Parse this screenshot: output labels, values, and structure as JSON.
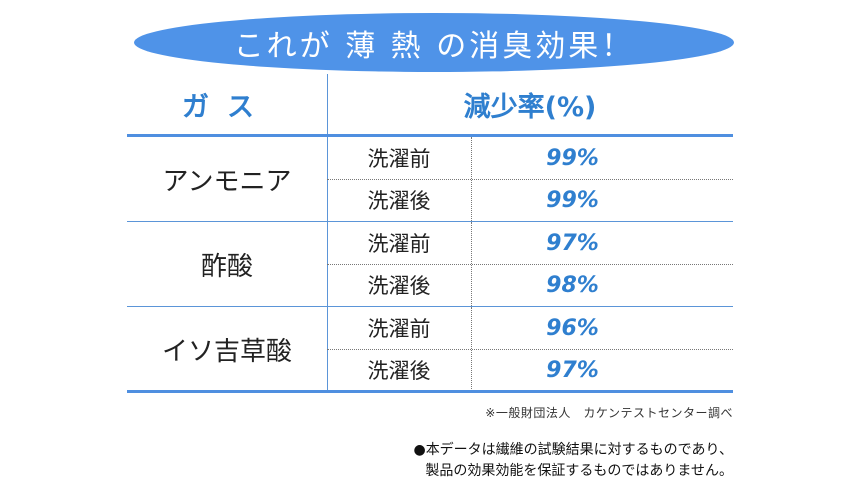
{
  "title": "これが 薄 熱 の消臭効果！",
  "headers": {
    "gas": "ガス",
    "rate": "減少率(%)"
  },
  "rows": [
    {
      "gas": "アンモニア",
      "entries": [
        {
          "condition": "洗濯前",
          "value": "99%"
        },
        {
          "condition": "洗濯後",
          "value": "99%"
        }
      ]
    },
    {
      "gas": "酢酸",
      "entries": [
        {
          "condition": "洗濯前",
          "value": "97%"
        },
        {
          "condition": "洗濯後",
          "value": "98%"
        }
      ]
    },
    {
      "gas": "イソ吉草酸",
      "entries": [
        {
          "condition": "洗濯前",
          "value": "96%"
        },
        {
          "condition": "洗濯後",
          "value": "97%"
        }
      ]
    }
  ],
  "source": "※一般財団法人　カケンテストセンター調べ",
  "note": {
    "bullet": "●",
    "line1": "本データは繊維の試験結果に対するものであり、",
    "line2": "製品の効果効能を保証するものではありません。"
  },
  "colors": {
    "accent": "#4f93e8",
    "value_text": "#2f7fcf"
  }
}
